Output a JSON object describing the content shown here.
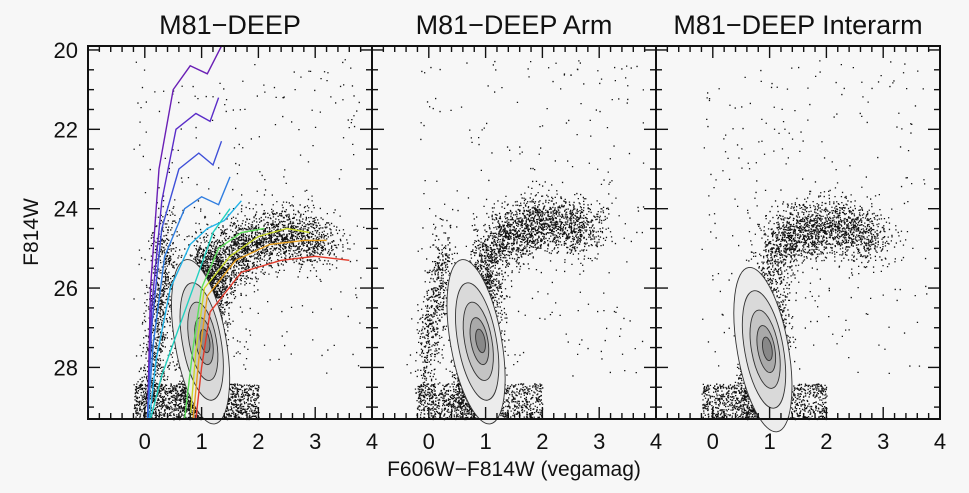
{
  "chart_data": {
    "type": "scatter",
    "xlabel": "F606W−F814W (vegamag)",
    "ylabel": "F814W",
    "xlim": [
      -1.0,
      4.0
    ],
    "ylim": [
      29.3,
      19.9
    ],
    "y_inverted": true,
    "panels": [
      {
        "title": "M81−DEEP",
        "x_ticks": [
          "0",
          "1",
          "2",
          "3",
          "4"
        ],
        "y_ticks": [
          "20",
          "22",
          "24",
          "26",
          "28"
        ],
        "x_tick_values": [
          0,
          1,
          2,
          3,
          4
        ],
        "y_tick_values": [
          20,
          22,
          24,
          26,
          28
        ],
        "features": {
          "main_sequence": {
            "x": [
              0.95,
              1.0,
              1.08
            ],
            "y": [
              28.8,
              27.5,
              25.5
            ],
            "density": "high"
          },
          "red_giant_branch": {
            "x": [
              1.1,
              1.4,
              1.9,
              2.5,
              3.2
            ],
            "y": [
              26.0,
              25.3,
              24.8,
              24.6,
              24.9
            ]
          },
          "blue_plume": {
            "x": [
              0.1,
              0.25,
              0.4
            ],
            "y": [
              28.6,
              26.5,
              24.5
            ]
          }
        },
        "isochrones": [
          {
            "color": "#6a1fb5",
            "x": [
              0.05,
              0.1,
              0.25,
              0.5,
              0.8,
              1.1,
              1.35
            ],
            "y": [
              29.3,
              26.0,
              23.0,
              21.0,
              20.4,
              20.6,
              19.9
            ]
          },
          {
            "color": "#5a2cc8",
            "x": [
              0.05,
              0.12,
              0.3,
              0.55,
              0.9,
              1.15,
              1.3
            ],
            "y": [
              29.3,
              26.5,
              23.8,
              22.0,
              21.6,
              21.8,
              21.2
            ]
          },
          {
            "color": "#3e4fd8",
            "x": [
              0.05,
              0.12,
              0.3,
              0.6,
              0.95,
              1.2,
              1.35
            ],
            "y": [
              29.3,
              27.0,
              24.5,
              23.0,
              22.6,
              22.9,
              22.3
            ]
          },
          {
            "color": "#2f7de0",
            "x": [
              0.05,
              0.15,
              0.35,
              0.7,
              1.0,
              1.3,
              1.5
            ],
            "y": [
              29.3,
              27.4,
              25.2,
              24.0,
              23.7,
              23.9,
              23.2
            ]
          },
          {
            "color": "#22b3e8",
            "x": [
              0.08,
              0.2,
              0.45,
              0.8,
              1.1,
              1.4,
              1.7
            ],
            "y": [
              29.3,
              27.8,
              26.0,
              24.9,
              24.5,
              24.3,
              23.8
            ]
          },
          {
            "color": "#20d0c0",
            "x": [
              0.1,
              0.3,
              0.6,
              0.95,
              1.2,
              1.5
            ],
            "y": [
              29.3,
              28.2,
              27.0,
              25.6,
              24.6,
              24.0
            ]
          },
          {
            "color": "#5ce05a",
            "x": [
              0.7,
              0.85,
              1.0,
              1.3,
              1.7,
              2.1
            ],
            "y": [
              29.3,
              27.5,
              26.0,
              25.0,
              24.6,
              24.5
            ]
          },
          {
            "color": "#c9d92a",
            "x": [
              0.8,
              0.9,
              1.05,
              1.5,
              2.0,
              2.5,
              2.9
            ],
            "y": [
              29.3,
              27.6,
              26.0,
              25.2,
              24.7,
              24.5,
              24.6
            ]
          },
          {
            "color": "#e8a020",
            "x": [
              0.85,
              0.95,
              1.1,
              1.6,
              2.2,
              2.8,
              3.2
            ],
            "y": [
              29.3,
              27.8,
              26.2,
              25.3,
              24.9,
              24.8,
              24.8
            ]
          },
          {
            "color": "#e23a2a",
            "x": [
              0.9,
              1.0,
              1.15,
              1.7,
              2.4,
              3.0,
              3.6
            ],
            "y": [
              29.3,
              28.0,
              26.6,
              25.6,
              25.3,
              25.2,
              25.3
            ]
          }
        ]
      },
      {
        "title": "M81−DEEP Arm",
        "x_ticks": [
          "0",
          "1",
          "2",
          "3",
          "4"
        ],
        "x_tick_values": [
          0,
          1,
          2,
          3,
          4
        ],
        "features": {
          "main_sequence": {
            "x": [
              0.7,
              0.85,
              1.0
            ],
            "y": [
              28.5,
              27.5,
              25.5
            ],
            "density": "high"
          },
          "blue_plume": {
            "x": [
              -0.1,
              0.1,
              0.3
            ],
            "y": [
              28.5,
              26.5,
              25.0
            ]
          },
          "red_giant_branch": {
            "x": [
              1.1,
              1.6,
              2.2,
              2.8
            ],
            "y": [
              25.0,
              24.5,
              24.3,
              24.6
            ]
          }
        }
      },
      {
        "title": "M81−DEEP Interarm",
        "x_ticks": [
          "0",
          "1",
          "2",
          "3",
          "4"
        ],
        "x_tick_values": [
          0,
          1,
          2,
          3,
          4
        ],
        "features": {
          "main_sequence": {
            "x": [
              0.75,
              0.9,
              1.0
            ],
            "y": [
              28.5,
              27.7,
              26.0
            ],
            "density": "high"
          },
          "red_giant_branch": {
            "x": [
              1.1,
              1.6,
              2.2,
              2.9
            ],
            "y": [
              25.0,
              24.5,
              24.4,
              24.8
            ]
          }
        }
      }
    ]
  }
}
